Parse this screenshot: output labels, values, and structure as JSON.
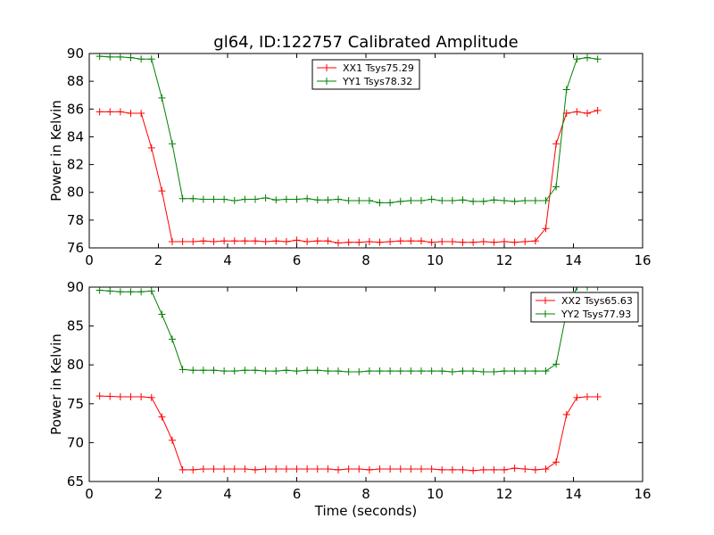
{
  "title": "gl64, ID:122757 Calibrated Amplitude",
  "chart_data": [
    {
      "type": "line",
      "xlabel": "",
      "ylabel": "Power in Kelvin",
      "xlim": [
        0,
        16
      ],
      "ylim": [
        76,
        90
      ],
      "xticks": [
        0,
        2,
        4,
        6,
        8,
        10,
        12,
        14,
        16
      ],
      "yticks": [
        76,
        78,
        80,
        82,
        84,
        86,
        88,
        90
      ],
      "legend_position": "top-center",
      "x": [
        0.3,
        0.6,
        0.9,
        1.2,
        1.5,
        1.8,
        2.1,
        2.4,
        2.7,
        3.0,
        3.3,
        3.6,
        3.9,
        4.2,
        4.5,
        4.8,
        5.1,
        5.4,
        5.7,
        6.0,
        6.3,
        6.6,
        6.9,
        7.2,
        7.5,
        7.8,
        8.1,
        8.4,
        8.7,
        9.0,
        9.3,
        9.6,
        9.9,
        10.2,
        10.5,
        10.8,
        11.1,
        11.4,
        11.7,
        12.0,
        12.3,
        12.6,
        12.9,
        13.2,
        13.5,
        13.8,
        14.1,
        14.4,
        14.7
      ],
      "series": [
        {
          "name": "XX1 Tsys75.29",
          "color": "#ff0000",
          "values": [
            85.8,
            85.8,
            85.8,
            85.7,
            85.7,
            83.2,
            80.1,
            76.45,
            76.45,
            76.45,
            76.5,
            76.45,
            76.5,
            76.5,
            76.5,
            76.5,
            76.45,
            76.5,
            76.45,
            76.55,
            76.45,
            76.5,
            76.5,
            76.35,
            76.4,
            76.4,
            76.45,
            76.4,
            76.45,
            76.5,
            76.5,
            76.5,
            76.4,
            76.45,
            76.45,
            76.4,
            76.4,
            76.45,
            76.4,
            76.45,
            76.4,
            76.45,
            76.5,
            77.4,
            83.5,
            85.7,
            85.8,
            85.7,
            85.9
          ]
        },
        {
          "name": "YY1 Tsys78.32",
          "color": "#008000",
          "values": [
            89.8,
            89.75,
            89.75,
            89.7,
            89.6,
            89.6,
            86.8,
            83.5,
            79.55,
            79.55,
            79.5,
            79.5,
            79.5,
            79.4,
            79.5,
            79.5,
            79.6,
            79.45,
            79.5,
            79.5,
            79.55,
            79.45,
            79.45,
            79.5,
            79.4,
            79.4,
            79.4,
            79.25,
            79.25,
            79.35,
            79.4,
            79.4,
            79.5,
            79.4,
            79.4,
            79.45,
            79.35,
            79.35,
            79.45,
            79.4,
            79.35,
            79.4,
            79.4,
            79.4,
            80.4,
            87.4,
            89.6,
            89.7,
            89.6
          ]
        }
      ]
    },
    {
      "type": "line",
      "xlabel": "Time (seconds)",
      "ylabel": "Power in Kelvin",
      "xlim": [
        0,
        16
      ],
      "ylim": [
        65,
        90
      ],
      "xticks": [
        0,
        2,
        4,
        6,
        8,
        10,
        12,
        14,
        16
      ],
      "yticks": [
        65,
        70,
        75,
        80,
        85,
        90
      ],
      "legend_position": "top-right",
      "x": [
        0.3,
        0.6,
        0.9,
        1.2,
        1.5,
        1.8,
        2.1,
        2.4,
        2.7,
        3.0,
        3.3,
        3.6,
        3.9,
        4.2,
        4.5,
        4.8,
        5.1,
        5.4,
        5.7,
        6.0,
        6.3,
        6.6,
        6.9,
        7.2,
        7.5,
        7.8,
        8.1,
        8.4,
        8.7,
        9.0,
        9.3,
        9.6,
        9.9,
        10.2,
        10.5,
        10.8,
        11.1,
        11.4,
        11.7,
        12.0,
        12.3,
        12.6,
        12.9,
        13.2,
        13.5,
        13.8,
        14.1,
        14.4,
        14.7
      ],
      "series": [
        {
          "name": "XX2 Tsys65.63",
          "color": "#ff0000",
          "values": [
            76.0,
            75.95,
            75.9,
            75.9,
            75.9,
            75.8,
            73.3,
            70.3,
            66.5,
            66.5,
            66.6,
            66.6,
            66.6,
            66.6,
            66.6,
            66.5,
            66.6,
            66.6,
            66.6,
            66.6,
            66.6,
            66.6,
            66.6,
            66.5,
            66.6,
            66.6,
            66.5,
            66.6,
            66.6,
            66.6,
            66.6,
            66.6,
            66.6,
            66.5,
            66.5,
            66.5,
            66.4,
            66.5,
            66.5,
            66.5,
            66.7,
            66.6,
            66.5,
            66.6,
            67.5,
            73.6,
            75.8,
            75.9,
            75.9
          ]
        },
        {
          "name": "YY2 Tsys77.93",
          "color": "#008000",
          "values": [
            89.6,
            89.5,
            89.4,
            89.4,
            89.4,
            89.5,
            86.5,
            83.3,
            79.4,
            79.3,
            79.3,
            79.3,
            79.2,
            79.2,
            79.3,
            79.3,
            79.2,
            79.2,
            79.3,
            79.2,
            79.3,
            79.3,
            79.2,
            79.2,
            79.1,
            79.1,
            79.2,
            79.2,
            79.2,
            79.2,
            79.2,
            79.2,
            79.2,
            79.2,
            79.1,
            79.2,
            79.2,
            79.1,
            79.1,
            79.2,
            79.2,
            79.2,
            79.2,
            79.2,
            80.1,
            86.8,
            90.0,
            90.0,
            90.0
          ]
        }
      ]
    }
  ]
}
